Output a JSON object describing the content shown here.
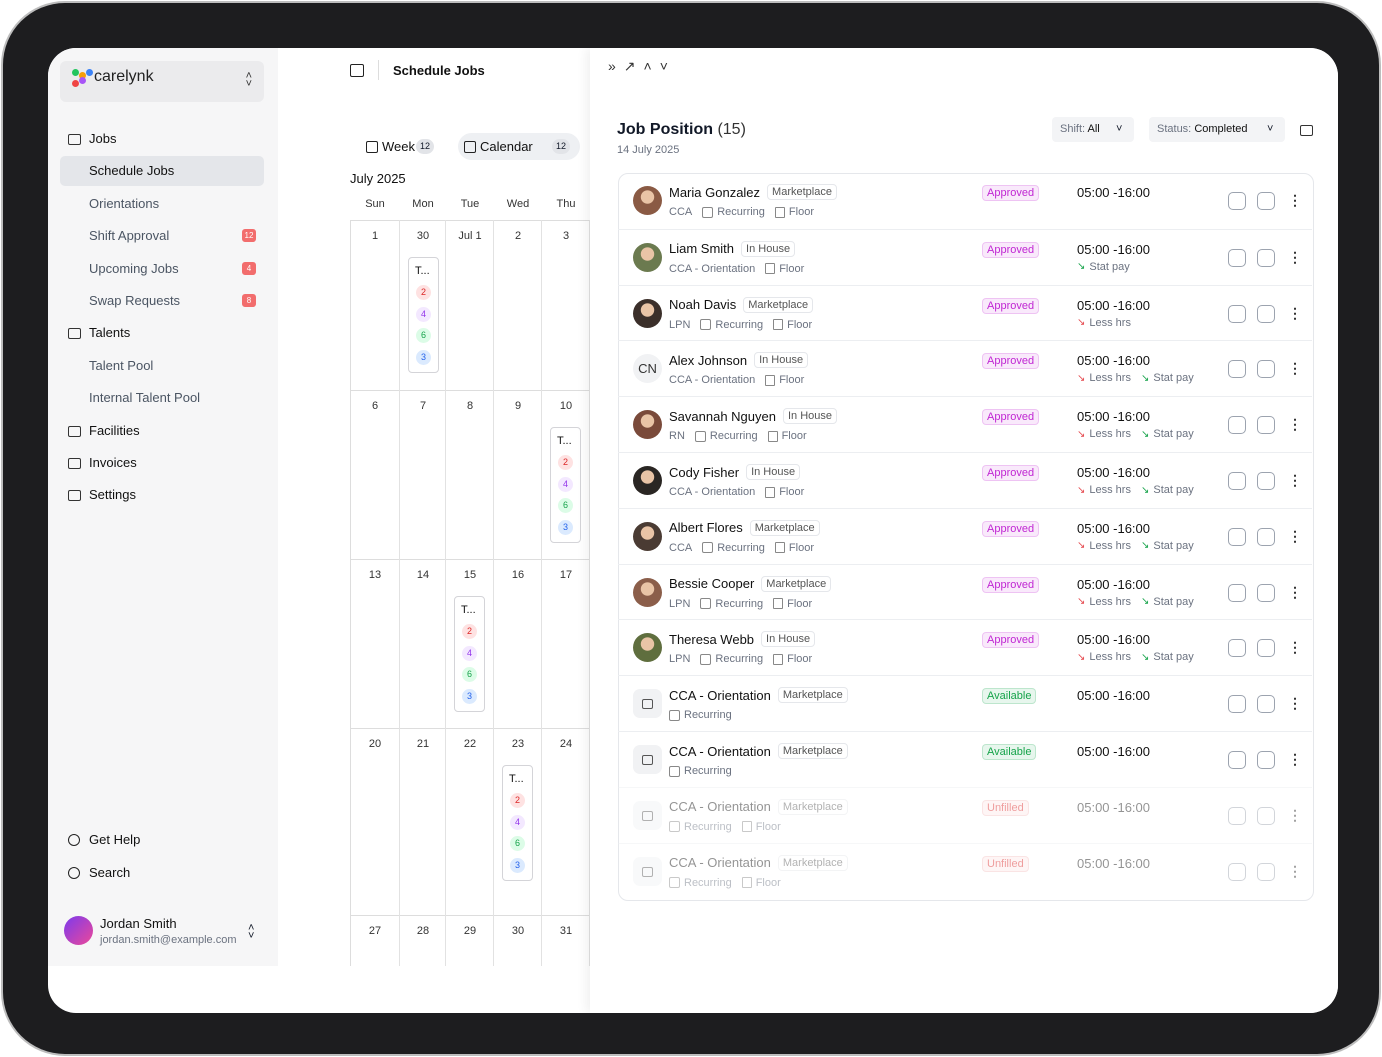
{
  "sidebar": {
    "brand": "carelynk",
    "nav": [
      {
        "label": "Jobs",
        "items": [
          {
            "label": "Schedule Jobs",
            "active": true
          },
          {
            "label": "Orientations"
          },
          {
            "label": "Shift Approval",
            "badge": 12
          },
          {
            "label": "Upcoming Jobs",
            "badge": 4
          },
          {
            "label": "Swap Requests",
            "badge": 8
          }
        ]
      },
      {
        "label": "Talents",
        "items": [
          {
            "label": "Talent Pool"
          },
          {
            "label": "Internal Talent Pool"
          }
        ]
      },
      {
        "label": "Facilities"
      },
      {
        "label": "Invoices"
      },
      {
        "label": "Settings"
      }
    ],
    "footer": [
      {
        "label": "Get Help"
      },
      {
        "label": "Search"
      }
    ],
    "user": {
      "name": "Jordan Smith",
      "email": "jordan.smith@example.com"
    }
  },
  "main": {
    "title": "Schedule Jobs",
    "tabs": [
      {
        "label": "Week",
        "count": 12
      },
      {
        "label": "Calendar",
        "count": 12,
        "active": true
      }
    ],
    "month": "July 2025",
    "weekdays": [
      "Sun",
      "Mon",
      "Tue",
      "Wed",
      "Thu"
    ],
    "weeks": [
      {
        "days": [
          "1",
          "30",
          "Jul 1",
          "2",
          "3"
        ],
        "event": {
          "day": 1,
          "label": "T...",
          "counts": [
            2,
            4,
            6,
            3
          ]
        }
      },
      {
        "days": [
          "6",
          "7",
          "8",
          "9",
          "10"
        ],
        "event": {
          "day": 4,
          "label": "T...",
          "counts": [
            2,
            4,
            6,
            3
          ]
        }
      },
      {
        "days": [
          "13",
          "14",
          "15",
          "16",
          "17"
        ],
        "event": {
          "day": 2,
          "label": "T...",
          "counts": [
            2,
            4,
            6,
            3
          ]
        }
      },
      {
        "days": [
          "20",
          "21",
          "22",
          "23",
          "24"
        ],
        "event": {
          "day": 3,
          "label": "T...",
          "counts": [
            2,
            4,
            6,
            3
          ]
        }
      },
      {
        "days": [
          "27",
          "28",
          "29",
          "30",
          "31"
        ]
      }
    ]
  },
  "panel": {
    "title": "Job Position",
    "count": "(15)",
    "date": "14 July 2025",
    "filters": [
      {
        "label": "Shift:",
        "value": "All"
      },
      {
        "label": "Status:",
        "value": "Completed"
      }
    ],
    "rows": [
      {
        "name": "Maria Gonzalez",
        "tag": "Marketplace",
        "role": "CCA",
        "schedule": "Recurring",
        "location": "Floor",
        "status": "Approved",
        "status_color": "#c026d3",
        "time": "05:00 -16:00",
        "avatar_color": "#8a5a44"
      },
      {
        "name": "Liam Smith",
        "tag": "In House",
        "role": "CCA - Orientation",
        "location": "Floor",
        "status": "Approved",
        "status_color": "#c026d3",
        "time": "05:00 -16:00",
        "avatar_color": "#6b7a4f",
        "notes": [
          {
            "text": "Stat pay",
            "color": "#16a34a"
          }
        ]
      },
      {
        "name": "Noah Davis",
        "tag": "Marketplace",
        "role": "LPN",
        "schedule": "Recurring",
        "location": "Floor",
        "status": "Approved",
        "status_color": "#c026d3",
        "time": "05:00 -16:00",
        "avatar_color": "#3b2f2a",
        "notes": [
          {
            "text": "Less hrs",
            "color": "#e5484d"
          }
        ]
      },
      {
        "name": "Alex Johnson",
        "tag": "In House",
        "role": "CCA - Orientation",
        "location": "Floor",
        "status": "Approved",
        "status_color": "#c026d3",
        "time": "05:00 -16:00",
        "initials": "CN",
        "notes": [
          {
            "text": "Less hrs",
            "color": "#e5484d"
          },
          {
            "text": "Stat pay",
            "color": "#16a34a"
          }
        ]
      },
      {
        "name": "Savannah Nguyen",
        "tag": "In House",
        "role": "RN",
        "schedule": "Recurring",
        "location": "Floor",
        "status": "Approved",
        "status_color": "#c026d3",
        "time": "05:00 -16:00",
        "avatar_color": "#7a4a3a",
        "notes": [
          {
            "text": "Less hrs",
            "color": "#e5484d"
          },
          {
            "text": "Stat pay",
            "color": "#16a34a"
          }
        ]
      },
      {
        "name": "Cody Fisher",
        "tag": "In House",
        "role": "CCA - Orientation",
        "location": "Floor",
        "status": "Approved",
        "status_color": "#c026d3",
        "time": "05:00 -16:00",
        "avatar_color": "#2a2623",
        "notes": [
          {
            "text": "Less hrs",
            "color": "#e5484d"
          },
          {
            "text": "Stat pay",
            "color": "#16a34a"
          }
        ]
      },
      {
        "name": "Albert Flores",
        "tag": "Marketplace",
        "role": "CCA",
        "schedule": "Recurring",
        "location": "Floor",
        "status": "Approved",
        "status_color": "#c026d3",
        "time": "05:00 -16:00",
        "avatar_color": "#4a3b33",
        "notes": [
          {
            "text": "Less hrs",
            "color": "#e5484d"
          },
          {
            "text": "Stat pay",
            "color": "#16a34a"
          }
        ]
      },
      {
        "name": "Bessie Cooper",
        "tag": "Marketplace",
        "role": "LPN",
        "schedule": "Recurring",
        "location": "Floor",
        "status": "Approved",
        "status_color": "#c026d3",
        "time": "05:00 -16:00",
        "avatar_color": "#8b5e4a",
        "notes": [
          {
            "text": "Less hrs",
            "color": "#e5484d"
          },
          {
            "text": "Stat pay",
            "color": "#16a34a"
          }
        ]
      },
      {
        "name": "Theresa Webb",
        "tag": "In House",
        "role": "LPN",
        "schedule": "Recurring",
        "location": "Floor",
        "status": "Approved",
        "status_color": "#c026d3",
        "time": "05:00 -16:00",
        "avatar_color": "#5f6e3e",
        "notes": [
          {
            "text": "Less hrs",
            "color": "#e5484d"
          },
          {
            "text": "Stat pay",
            "color": "#16a34a"
          }
        ]
      },
      {
        "name": "CCA - Orientation",
        "tag": "Marketplace",
        "schedule": "Recurring",
        "status": "Available",
        "status_color": "#16a34a",
        "time": "05:00 -16:00",
        "avatar": "job"
      },
      {
        "name": "CCA - Orientation",
        "tag": "Marketplace",
        "schedule": "Recurring",
        "status": "Available",
        "status_color": "#16a34a",
        "time": "05:00 -16:00",
        "avatar": "job"
      },
      {
        "name": "CCA - Orientation",
        "tag": "Marketplace",
        "schedule": "Recurring",
        "location": "Floor",
        "status": "Unfilled",
        "status_color": "#dc2626",
        "time": "05:00 -16:00",
        "avatar": "job",
        "faded": true
      },
      {
        "name": "CCA - Orientation",
        "tag": "Marketplace",
        "schedule": "Recurring",
        "location": "Floor",
        "status": "Unfilled",
        "status_color": "#dc2626",
        "time": "05:00 -16:00",
        "avatar": "job",
        "faded": true
      }
    ]
  }
}
